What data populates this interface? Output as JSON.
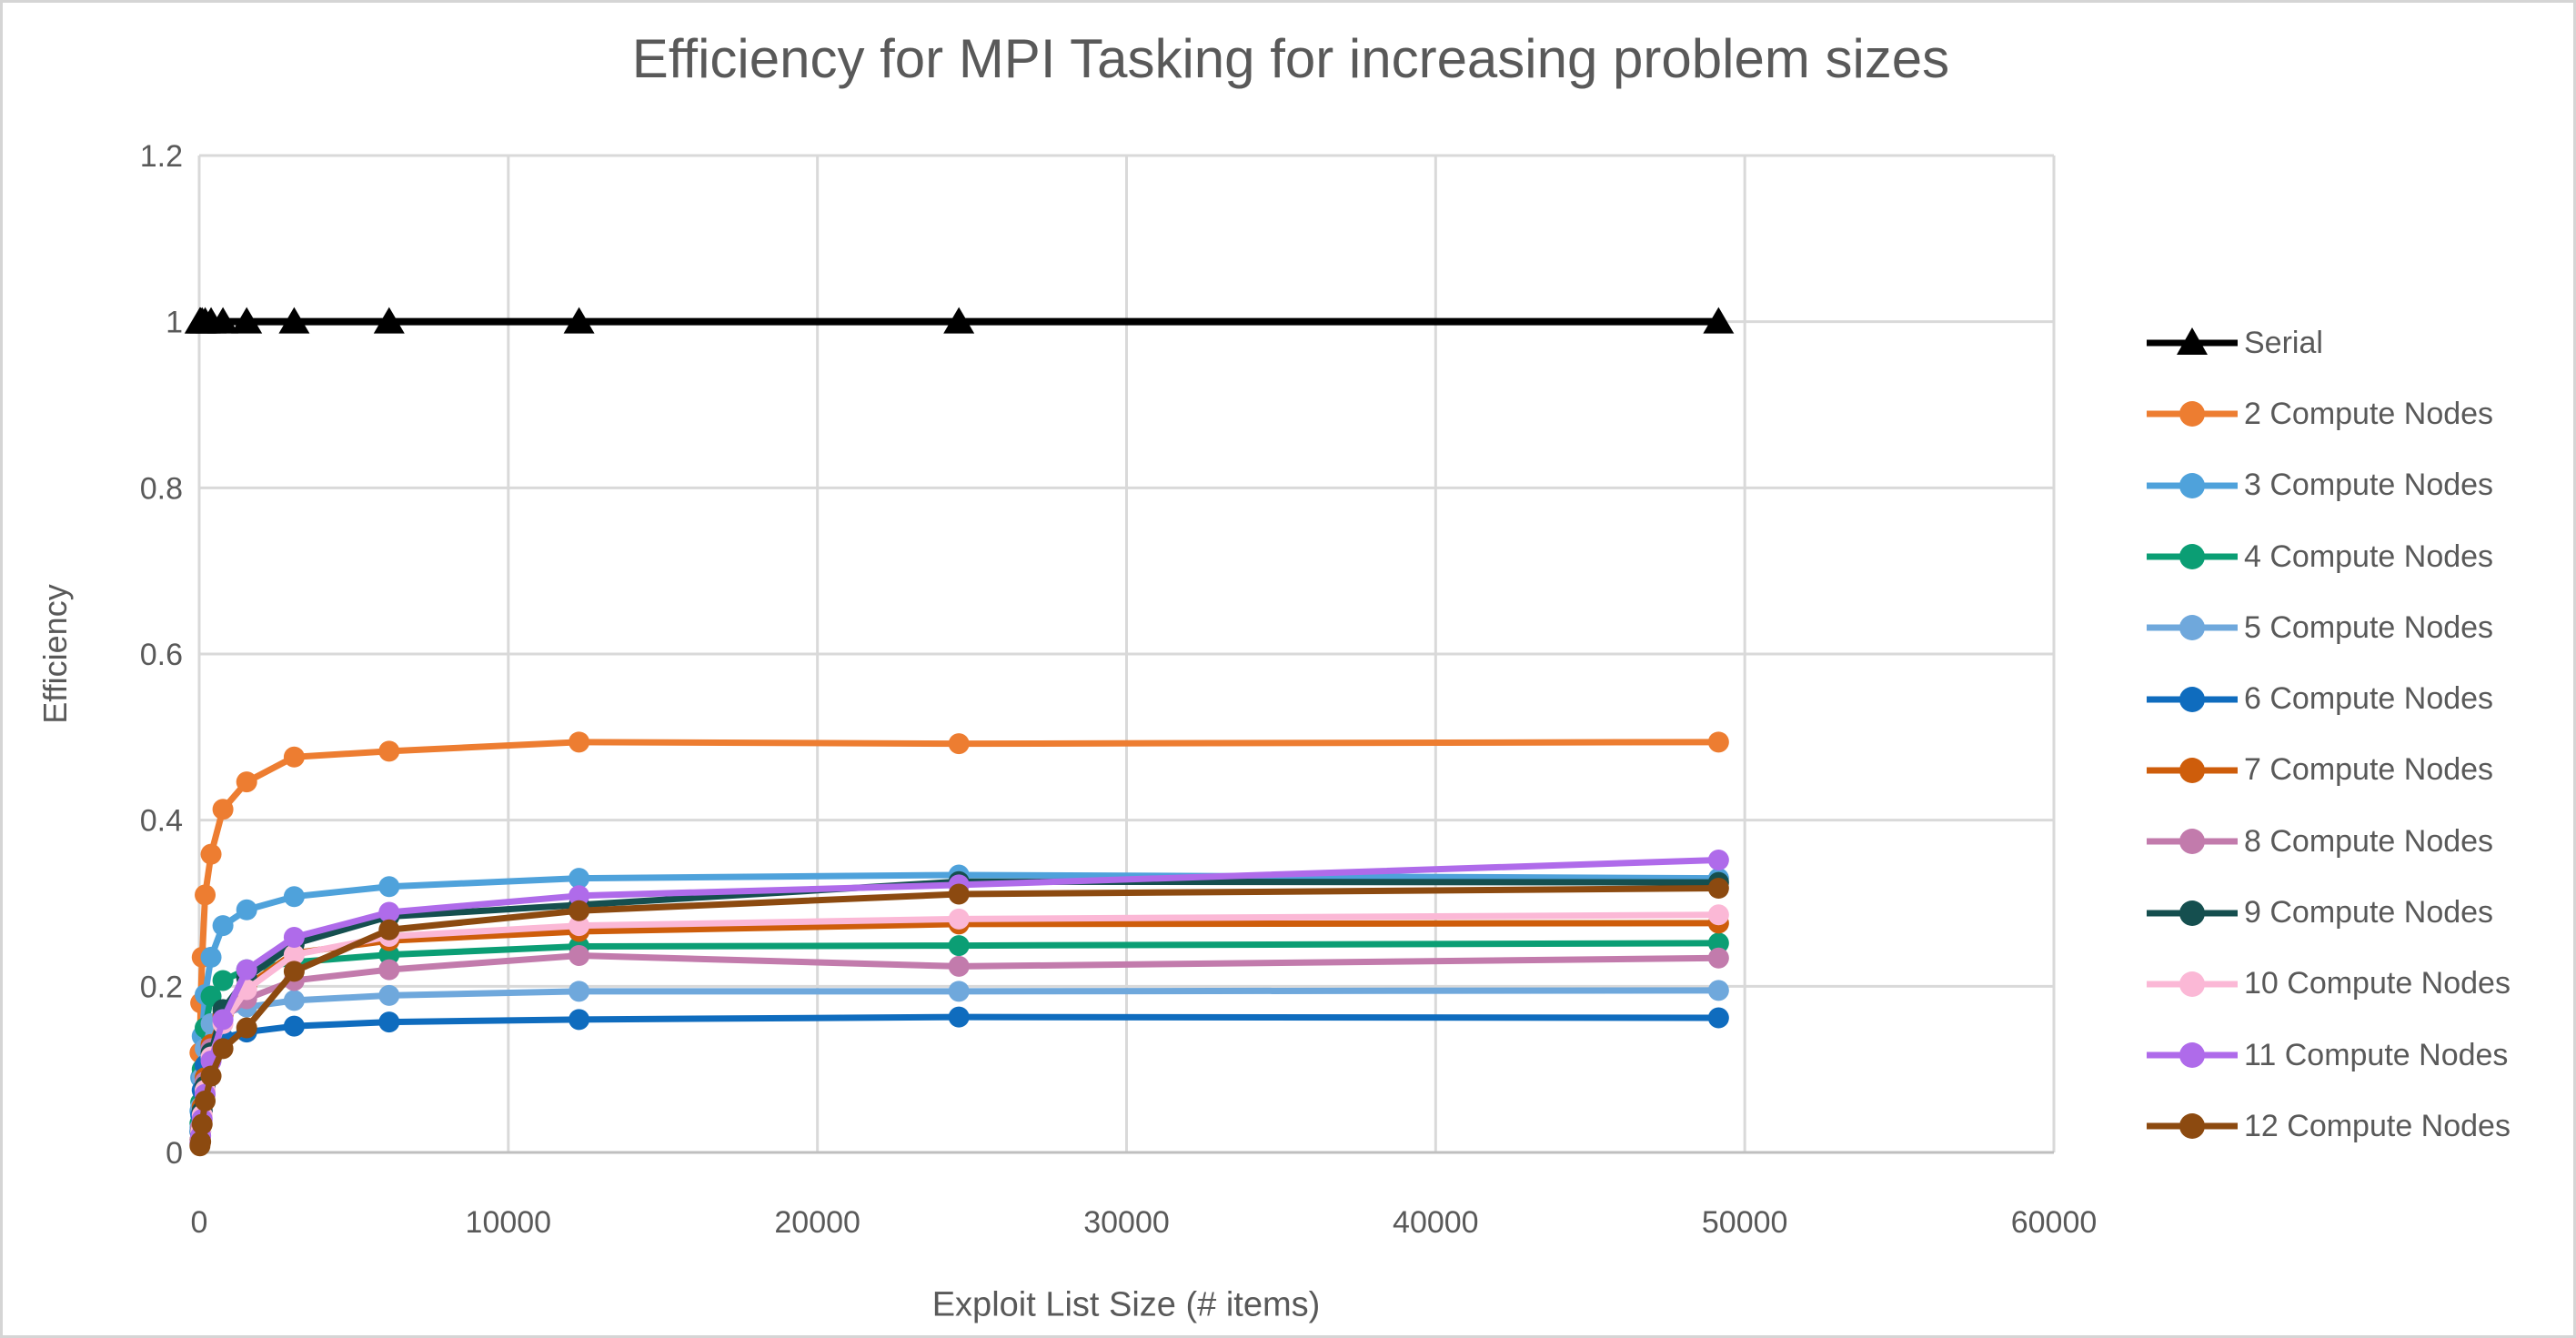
{
  "styles": {
    "text_color": "#595959",
    "grid_color": "#D9D9D9",
    "axis_color": "#BFBFBF",
    "background": "#FFFFFF",
    "frame_border": "#D5D5D5"
  },
  "chart_data": {
    "type": "line",
    "title": "Efficiency for MPI Tasking for increasing problem sizes",
    "xlabel": "Exploit List Size (# items)",
    "ylabel": "Efficiency",
    "xlim": [
      0,
      60000
    ],
    "ylim": [
      0,
      1.2
    ],
    "grid": true,
    "legend_position": "right",
    "x_ticks": [
      {
        "value": 0,
        "label": "0"
      },
      {
        "value": 10000,
        "label": "10000"
      },
      {
        "value": 20000,
        "label": "20000"
      },
      {
        "value": 30000,
        "label": "30000"
      },
      {
        "value": 40000,
        "label": "40000"
      },
      {
        "value": 50000,
        "label": "50000"
      },
      {
        "value": 60000,
        "label": "60000"
      }
    ],
    "y_ticks": [
      {
        "value": 0,
        "label": "0"
      },
      {
        "value": 0.2,
        "label": "0.2"
      },
      {
        "value": 0.4,
        "label": "0.4"
      },
      {
        "value": 0.6,
        "label": "0.6"
      },
      {
        "value": 0.8,
        "label": "0.8"
      },
      {
        "value": 1,
        "label": "1"
      },
      {
        "value": 1.2,
        "label": "1.2"
      }
    ],
    "x": [
      24,
      48,
      96,
      192,
      384,
      768,
      1536,
      3072,
      6144,
      12288,
      24576,
      49152
    ],
    "series": [
      {
        "name": "Serial",
        "color": "#000000",
        "marker": "triangle",
        "values": [
          1,
          1,
          1,
          1,
          1,
          1,
          1,
          1,
          1,
          1,
          1,
          1
        ]
      },
      {
        "name": "2 Compute Nodes",
        "color": "#ED7D31",
        "marker": "circle",
        "values": [
          0.12,
          0.18,
          0.235,
          0.31,
          0.359,
          0.413,
          0.446,
          0.476,
          0.483,
          0.494,
          0.492,
          0.494
        ]
      },
      {
        "name": "3 Compute Nodes",
        "color": "#4FA2DB",
        "marker": "circle",
        "values": [
          0.05,
          0.09,
          0.14,
          0.19,
          0.235,
          0.273,
          0.292,
          0.308,
          0.32,
          0.33,
          0.334,
          0.33
        ]
      },
      {
        "name": "4 Compute Nodes",
        "color": "#0B9E74",
        "marker": "circle",
        "values": [
          0.035,
          0.06,
          0.1,
          0.15,
          0.188,
          0.207,
          0.22,
          0.229,
          0.238,
          0.248,
          0.249,
          0.252
        ]
      },
      {
        "name": "5 Compute Nodes",
        "color": "#6FA8DC",
        "marker": "circle",
        "values": [
          0.03,
          0.055,
          0.09,
          0.125,
          0.155,
          0.168,
          0.175,
          0.183,
          0.189,
          0.194,
          0.194,
          0.195
        ]
      },
      {
        "name": "6 Compute Nodes",
        "color": "#0F6CBE",
        "marker": "circle",
        "values": [
          0.025,
          0.045,
          0.075,
          0.105,
          0.128,
          0.138,
          0.145,
          0.152,
          0.157,
          0.16,
          0.163,
          0.162
        ]
      },
      {
        "name": "7 Compute Nodes",
        "color": "#CE5D0B",
        "marker": "circle",
        "values": [
          0.015,
          0.03,
          0.055,
          0.09,
          0.13,
          0.165,
          0.2,
          0.24,
          0.255,
          0.266,
          0.275,
          0.276
        ]
      },
      {
        "name": "8 Compute Nodes",
        "color": "#C27BAC",
        "marker": "circle",
        "values": [
          0.015,
          0.03,
          0.05,
          0.085,
          0.125,
          0.16,
          0.185,
          0.207,
          0.22,
          0.237,
          0.224,
          0.234
        ]
      },
      {
        "name": "9 Compute Nodes",
        "color": "#154F4F",
        "marker": "circle",
        "values": [
          0.012,
          0.025,
          0.05,
          0.08,
          0.12,
          0.172,
          0.21,
          0.251,
          0.284,
          0.298,
          0.326,
          0.325
        ]
      },
      {
        "name": "10 Compute Nodes",
        "color": "#FBB8D6",
        "marker": "circle",
        "values": [
          0.012,
          0.025,
          0.045,
          0.075,
          0.115,
          0.155,
          0.196,
          0.238,
          0.26,
          0.273,
          0.281,
          0.286
        ]
      },
      {
        "name": "11 Compute Nodes",
        "color": "#AF6BEA",
        "marker": "circle",
        "values": [
          0.01,
          0.02,
          0.04,
          0.07,
          0.11,
          0.16,
          0.22,
          0.259,
          0.289,
          0.309,
          0.322,
          0.352
        ]
      },
      {
        "name": "12 Compute Nodes",
        "color": "#8C4A10",
        "marker": "circle",
        "values": [
          0.008,
          0.013,
          0.034,
          0.062,
          0.092,
          0.125,
          0.15,
          0.218,
          0.268,
          0.291,
          0.311,
          0.318
        ]
      }
    ]
  }
}
